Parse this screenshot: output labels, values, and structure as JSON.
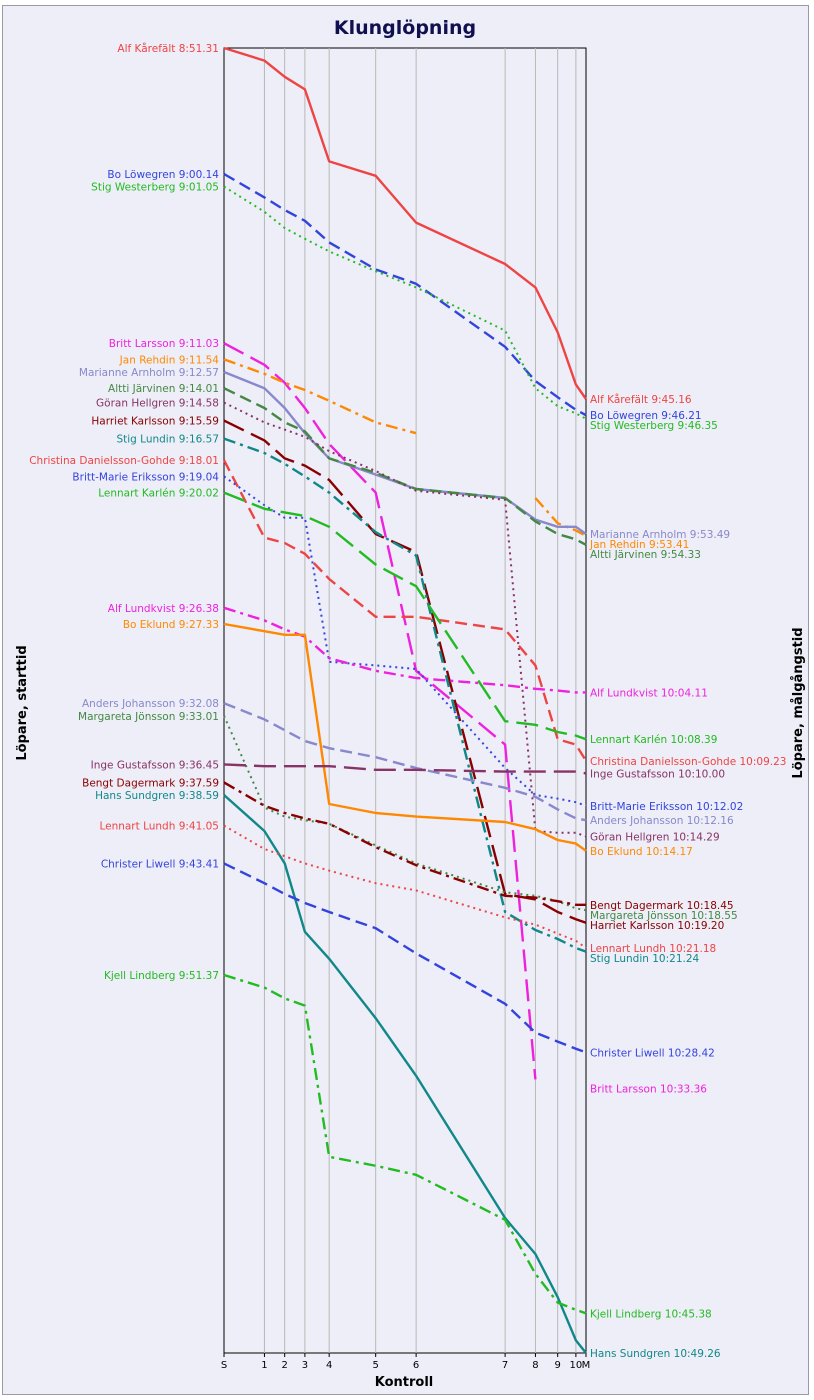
{
  "chart_data": {
    "type": "line",
    "title": "Klunglöpning",
    "xlabel": "Kontroll",
    "ylabel_left": "Löpare, starttid",
    "ylabel_right": "Löpare, målgångstid",
    "grid": true,
    "legend": "none",
    "categories": [
      "S",
      "1",
      "2",
      "3",
      "4",
      "5",
      "6",
      "7",
      "8",
      "9",
      "10",
      "M"
    ],
    "x": [
      0,
      10,
      15,
      20,
      26,
      37.5,
      47.5,
      69.5,
      77,
      82.5,
      87,
      89.5
    ],
    "y_axis": "clock time, increasing downward",
    "series": [
      {
        "name": "Alf Kårefält",
        "start": "8:51.31",
        "finish": "9:45.16",
        "color": "#ee4444",
        "style": "solid",
        "y": [
          0.0,
          0.7,
          1.6,
          2.3,
          6.3,
          7.1,
          9.7,
          12.0,
          13.3,
          15.8,
          18.7,
          19.5
        ]
      },
      {
        "name": "Bo Löwegren",
        "start": "9:00.14",
        "finish": "9:46.21",
        "color": "#3344dd",
        "style": "dash",
        "y": [
          7.0,
          8.3,
          9.0,
          9.6,
          10.8,
          12.3,
          13.1,
          16.6,
          18.5,
          19.4,
          20.1,
          20.4
        ]
      },
      {
        "name": "Stig Westerberg",
        "start": "9:01.05",
        "finish": "9:46.35",
        "color": "#22bb22",
        "style": "dot",
        "y": [
          7.7,
          9.1,
          10.0,
          10.6,
          11.3,
          12.4,
          13.3,
          15.7,
          18.9,
          19.9,
          20.3,
          20.6
        ]
      },
      {
        "name": "Britt Larsson",
        "start": "9:11.03",
        "finish": "10:33.36",
        "color": "#ee22dd",
        "style": "longdash",
        "y": [
          16.4,
          17.6,
          18.6,
          20.0,
          22.0,
          24.7,
          34.6,
          38.7,
          57.3,
          null,
          null,
          57.8
        ]
      },
      {
        "name": "Jan Rehdin",
        "start": "9:11.54",
        "finish": "9:53.41",
        "color": "#ff8800",
        "style": "dashdot",
        "y": [
          17.3,
          18.1,
          18.6,
          19.0,
          19.6,
          20.8,
          21.4,
          null,
          25.0,
          26.4,
          26.8,
          27.1
        ]
      },
      {
        "name": "Marianne Arnholm",
        "start": "9:12.57",
        "finish": "9:53.49",
        "color": "#8888cc",
        "style": "solid",
        "y": [
          18.0,
          18.9,
          20.0,
          21.4,
          22.8,
          23.7,
          24.5,
          25.0,
          26.2,
          26.6,
          26.6,
          27.0
        ]
      },
      {
        "name": "Altti Järvinen",
        "start": "9:14.01",
        "finish": "9:54.33",
        "color": "#448844",
        "style": "dash",
        "y": [
          18.9,
          20.0,
          20.8,
          21.3,
          22.8,
          23.6,
          24.5,
          25.0,
          26.3,
          27.0,
          27.3,
          27.6
        ]
      },
      {
        "name": "Göran Hellgren",
        "start": "9:14.58",
        "finish": "10:14.29",
        "color": "#883366",
        "style": "dot",
        "y": [
          19.7,
          20.8,
          21.2,
          21.6,
          22.4,
          23.5,
          24.6,
          25.1,
          43.5,
          43.6,
          43.6,
          43.8
        ]
      },
      {
        "name": "Harriet Karlsson",
        "start": "9:15.59",
        "finish": "10:19.20",
        "color": "#880000",
        "style": "longdash",
        "y": [
          20.7,
          21.8,
          22.8,
          23.2,
          24.0,
          27.0,
          28.0,
          47.0,
          47.3,
          48.0,
          48.4,
          48.6
        ]
      },
      {
        "name": "Stig Lundin",
        "start": "9:16.57",
        "finish": "10:21.24",
        "color": "#118888",
        "style": "dashdot",
        "y": [
          21.7,
          22.5,
          23.1,
          23.8,
          24.7,
          26.9,
          28.2,
          48.0,
          49.0,
          49.5,
          50.0,
          50.2
        ]
      },
      {
        "name": "Christina Danielsson-Gohde",
        "start": "9:18.01",
        "finish": "10:09.23",
        "color": "#ee4444",
        "style": "dash",
        "y": [
          22.9,
          27.2,
          27.5,
          28.1,
          29.5,
          31.6,
          31.6,
          32.3,
          34.3,
          38.4,
          38.7,
          39.6
        ]
      },
      {
        "name": "Britt-Marie Eriksson",
        "start": "9:19.04",
        "finish": "10:12.02",
        "color": "#3344dd",
        "style": "dot",
        "y": [
          23.8,
          25.4,
          26.1,
          26.1,
          34.1,
          34.3,
          34.5,
          40.0,
          41.5,
          41.7,
          41.9,
          42.1
        ]
      },
      {
        "name": "Lennart Karlén",
        "start": "9:20.02",
        "finish": "10:08.39",
        "color": "#22bb22",
        "style": "longdash",
        "y": [
          24.7,
          25.6,
          25.8,
          26.0,
          26.6,
          28.7,
          29.9,
          37.4,
          37.6,
          38.0,
          38.2,
          38.4
        ]
      },
      {
        "name": "Alf Lundkvist",
        "start": "9:26.38",
        "finish": "10:04.11",
        "color": "#ee22dd",
        "style": "dashdot",
        "y": [
          31.1,
          31.8,
          32.3,
          32.7,
          33.9,
          34.6,
          35.0,
          35.4,
          35.6,
          35.7,
          35.8,
          35.8
        ]
      },
      {
        "name": "Bo Eklund",
        "start": "9:27.33",
        "finish": "10:14.17",
        "color": "#ff8800",
        "style": "solid",
        "y": [
          32.0,
          32.4,
          32.6,
          32.6,
          42.0,
          42.5,
          42.7,
          43.0,
          43.4,
          44.0,
          44.2,
          44.6
        ]
      },
      {
        "name": "Anders Johansson",
        "start": "9:32.08",
        "finish": "10:12.16",
        "color": "#8888cc",
        "style": "dash",
        "y": [
          36.4,
          37.3,
          37.9,
          38.5,
          38.9,
          39.4,
          40.0,
          41.1,
          41.6,
          42.3,
          42.8,
          42.9
        ]
      },
      {
        "name": "Margareta Jönsson",
        "start": "9:33.01",
        "finish": "10:18.55",
        "color": "#448844",
        "style": "dot",
        "y": [
          37.1,
          42.2,
          42.7,
          42.9,
          43.1,
          44.3,
          45.3,
          46.9,
          47.1,
          47.4,
          47.8,
          47.9
        ]
      },
      {
        "name": "Inge Gustafsson",
        "start": "9:36.45",
        "finish": "10:10.00",
        "color": "#883366",
        "style": "longdash",
        "y": [
          39.8,
          39.9,
          39.9,
          39.9,
          39.9,
          40.1,
          40.1,
          40.2,
          40.2,
          40.2,
          40.2,
          40.3
        ]
      },
      {
        "name": "Bengt Dagermark",
        "start": "9:37.59",
        "finish": "10:18.45",
        "color": "#880000",
        "style": "dashdot",
        "y": [
          40.8,
          42.1,
          42.5,
          42.8,
          43.1,
          44.4,
          45.4,
          47.1,
          47.2,
          47.4,
          47.6,
          47.6
        ]
      },
      {
        "name": "Hans Sundgren",
        "start": "9:38.59",
        "finish": "10:49.26",
        "color": "#118888",
        "style": "solid",
        "y": [
          41.5,
          43.5,
          45.3,
          49.1,
          50.6,
          53.9,
          57.1,
          65.0,
          67.0,
          69.4,
          71.8,
          72.5
        ]
      },
      {
        "name": "Lennart Lundh",
        "start": "9:41.05",
        "finish": "10:21.18",
        "color": "#ee4444",
        "style": "dot",
        "y": [
          43.2,
          44.5,
          44.9,
          45.3,
          45.7,
          46.4,
          46.8,
          48.3,
          48.7,
          49.2,
          49.6,
          50.0
        ]
      },
      {
        "name": "Christer Liwell",
        "start": "9:43.41",
        "finish": "10:28.42",
        "color": "#3344dd",
        "style": "dash",
        "y": [
          45.3,
          46.4,
          47.0,
          47.5,
          48.0,
          48.9,
          50.3,
          53.1,
          54.7,
          55.2,
          55.6,
          55.8
        ]
      },
      {
        "name": "Kjell Lindberg",
        "start": "9:51.37",
        "finish": "10:45.38",
        "color": "#22bb22",
        "style": "dashdot",
        "y": [
          51.5,
          52.2,
          52.8,
          53.2,
          61.6,
          62.1,
          62.6,
          65.1,
          68.1,
          69.7,
          70.1,
          70.3
        ]
      }
    ]
  }
}
